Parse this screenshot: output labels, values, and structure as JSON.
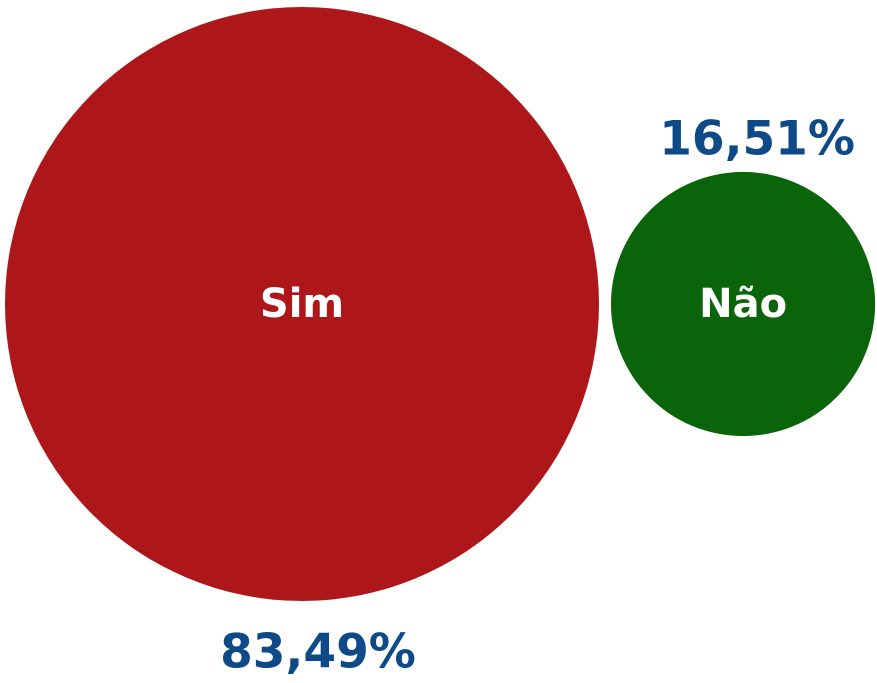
{
  "chart_data": {
    "type": "bubble",
    "categories": [
      "Sim",
      "Não"
    ],
    "values": [
      83.49,
      16.51
    ],
    "value_labels": [
      "83,49%",
      "16,51%"
    ],
    "colors": [
      "#ae1719",
      "#0a6409"
    ]
  }
}
